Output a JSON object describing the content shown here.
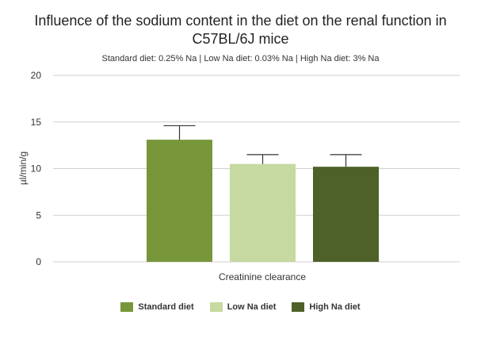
{
  "chart_data": {
    "type": "bar",
    "title_lines": [
      "Influence of the sodium content in the diet on the renal function in",
      "C57BL/6J mice"
    ],
    "subtitle": "Standard diet: 0.25% Na | Low Na diet: 0.03% Na | High Na diet: 3% Na",
    "categories": [
      "Creatinine clearance"
    ],
    "series": [
      {
        "name": "Standard diet",
        "values": [
          13.1
        ],
        "error": [
          1.5
        ],
        "color": "#77963a"
      },
      {
        "name": "Low Na diet",
        "values": [
          10.5
        ],
        "error": [
          1.0
        ],
        "color": "#c6d9a0"
      },
      {
        "name": "High Na diet",
        "values": [
          10.2
        ],
        "error": [
          1.3
        ],
        "color": "#4e6128"
      }
    ],
    "xlabel": "Creatinine clearance",
    "ylabel": "µl/min/g",
    "ylim": [
      0,
      20
    ],
    "yticks": [
      "0",
      "5",
      "10",
      "15",
      "20"
    ],
    "grid": true,
    "legend_position": "bottom"
  }
}
